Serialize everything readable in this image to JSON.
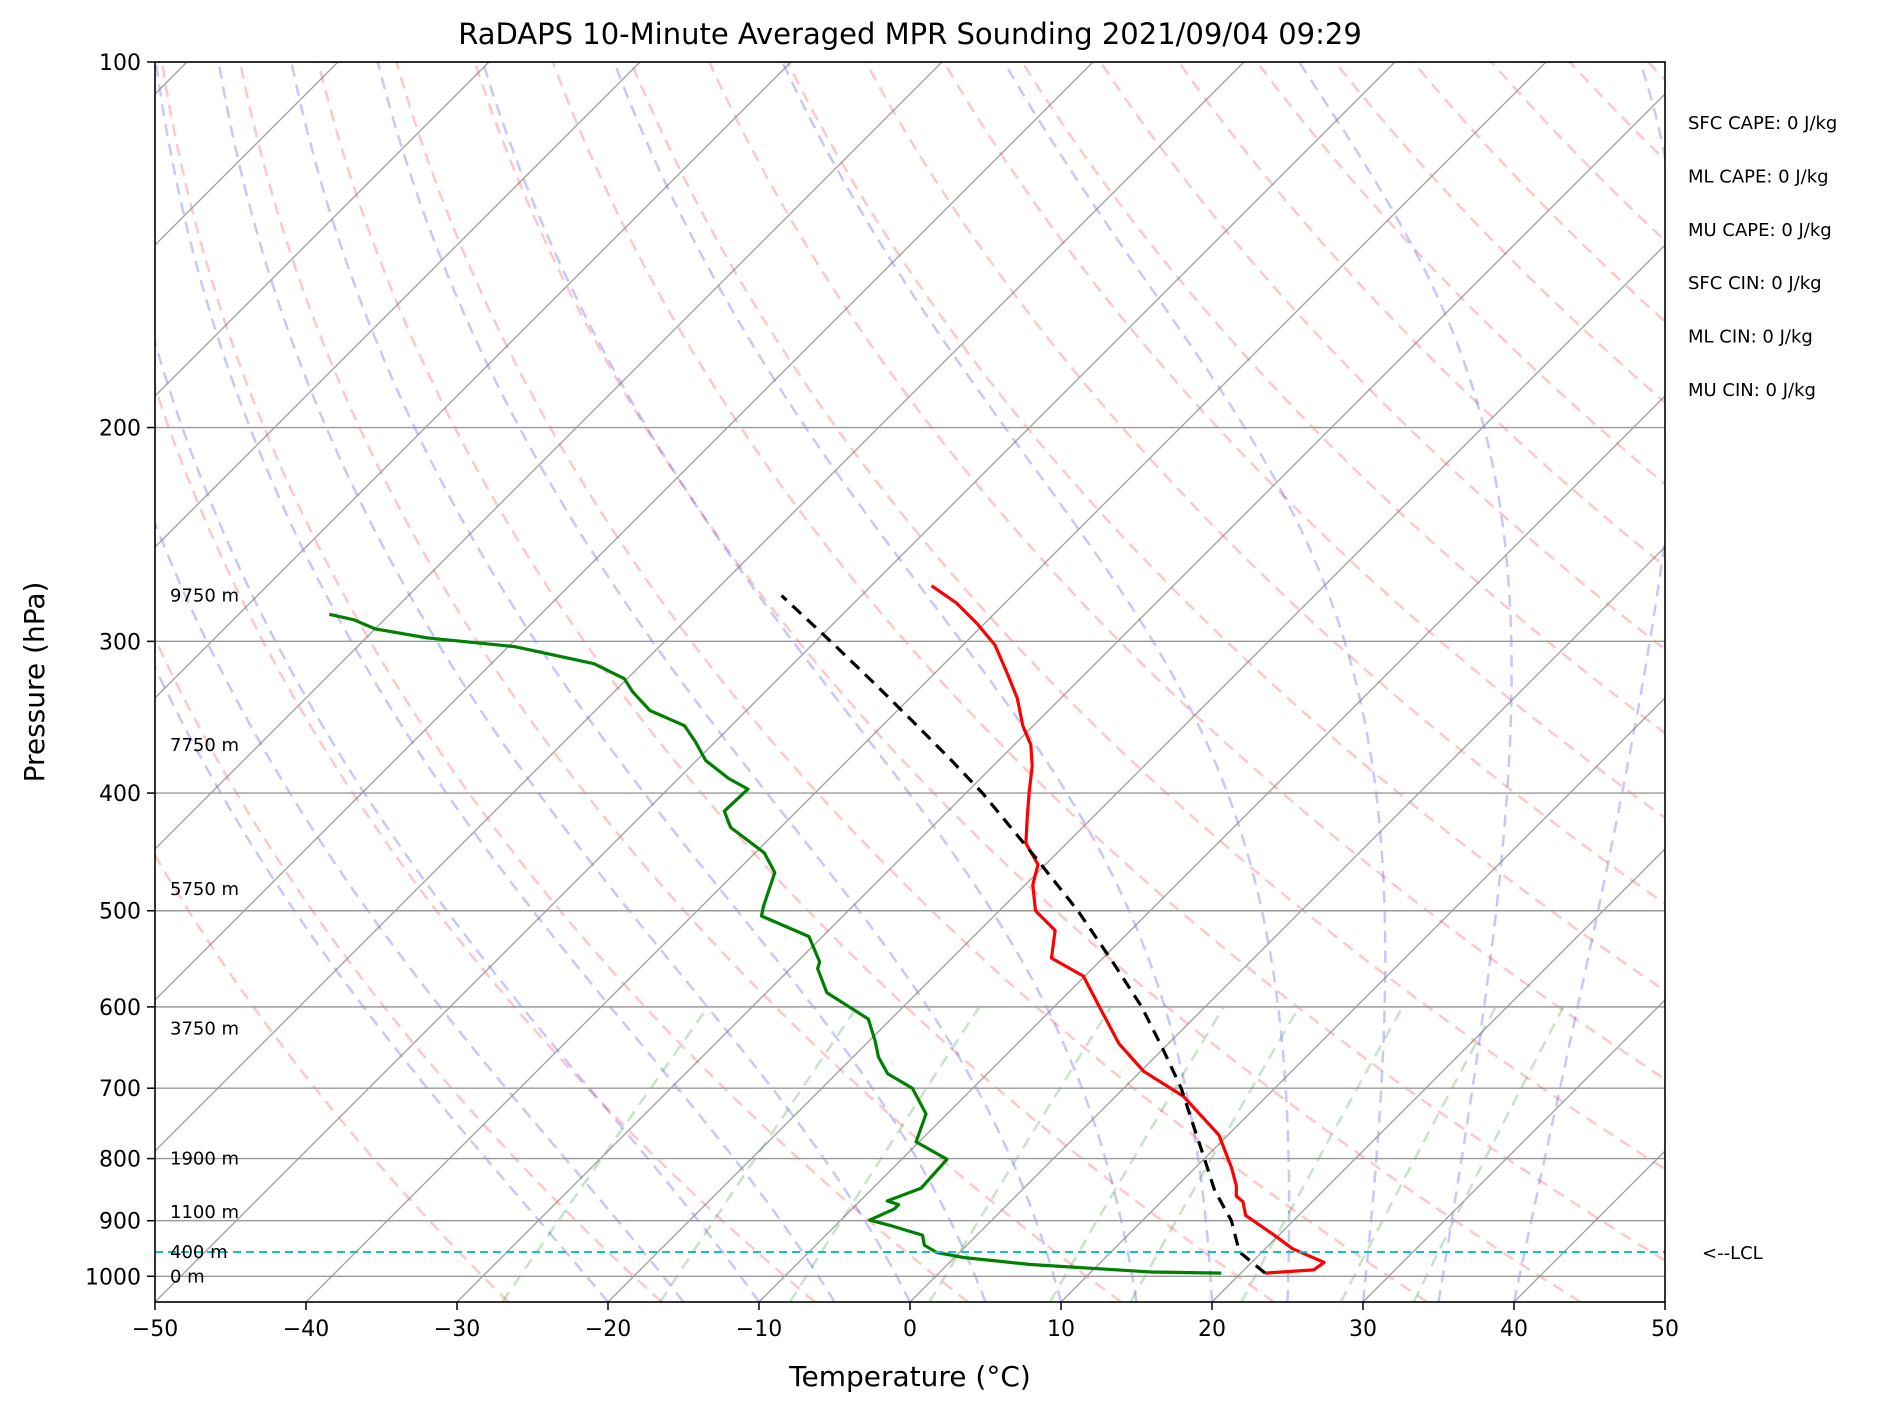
{
  "chart_data": {
    "type": "line",
    "title": "RaDAPS 10-Minute Averaged MPR Sounding 2021/09/04 09:29",
    "xlabel": "Temperature (°C)",
    "ylabel": "Pressure (hPa)",
    "xlim": [
      -50,
      50
    ],
    "ylim": [
      1050,
      100
    ],
    "y_scale": "log",
    "skew": "skew-T",
    "grid": true,
    "x_ticks": [
      -50,
      -40,
      -30,
      -20,
      -10,
      0,
      10,
      20,
      30,
      40,
      50
    ],
    "x_tick_labels": [
      "−50",
      "−40",
      "−30",
      "−20",
      "−10",
      "0",
      "10",
      "20",
      "30",
      "40",
      "50"
    ],
    "y_ticks": [
      100,
      200,
      300,
      400,
      500,
      600,
      700,
      800,
      900,
      1000
    ],
    "y_tick_labels": [
      "100",
      "200",
      "300",
      "400",
      "500",
      "600",
      "700",
      "800",
      "900",
      "1000"
    ],
    "height_labels": [
      {
        "pressure": 275,
        "text": "9750 m"
      },
      {
        "pressure": 365,
        "text": "7750 m"
      },
      {
        "pressure": 480,
        "text": "5750 m"
      },
      {
        "pressure": 625,
        "text": "3750 m"
      },
      {
        "pressure": 800,
        "text": "1900 m"
      },
      {
        "pressure": 885,
        "text": "1100 m"
      },
      {
        "pressure": 955,
        "text": "400 m"
      },
      {
        "pressure": 1000,
        "text": "0 m"
      }
    ],
    "lcl": {
      "pressure": 955,
      "label": "<--LCL"
    },
    "indices": [
      "SFC CAPE: 0 J/kg",
      "ML CAPE: 0 J/kg",
      "MU CAPE: 0 J/kg",
      "SFC CIN: 0 J/kg",
      "ML CIN: 0 J/kg",
      "MU CIN: 0 J/kg"
    ],
    "series": [
      {
        "id": "temperature",
        "color": "#ff0000",
        "style": "solid",
        "points": [
          [
            21.6,
            994
          ],
          [
            24.6,
            988
          ],
          [
            24.8,
            974
          ],
          [
            21.8,
            949
          ],
          [
            19.7,
            925
          ],
          [
            16.5,
            891
          ],
          [
            15.4,
            868
          ],
          [
            14.6,
            859
          ],
          [
            13.9,
            842
          ],
          [
            12.4,
            814
          ],
          [
            9.4,
            765
          ],
          [
            4.5,
            711
          ],
          [
            0.2,
            678
          ],
          [
            -3.3,
            643
          ],
          [
            -7.0,
            600
          ],
          [
            -10.1,
            566
          ],
          [
            -13.4,
            547
          ],
          [
            -15.0,
            519
          ],
          [
            -17.6,
            500
          ],
          [
            -19.5,
            476
          ],
          [
            -20.5,
            458
          ],
          [
            -22.7,
            440
          ],
          [
            -24.4,
            418
          ],
          [
            -25.9,
            399
          ],
          [
            -27.4,
            380
          ],
          [
            -28.9,
            365
          ],
          [
            -30.7,
            352
          ],
          [
            -32.9,
            334
          ],
          [
            -35.0,
            320
          ],
          [
            -37.9,
            302
          ],
          [
            -40.5,
            290
          ],
          [
            -43.2,
            279
          ],
          [
            -46.0,
            270
          ]
        ]
      },
      {
        "id": "dewpoint",
        "color": "#008000",
        "style": "solid",
        "points": [
          [
            18.7,
            994
          ],
          [
            14.0,
            992
          ],
          [
            5.5,
            978
          ],
          [
            0.6,
            965
          ],
          [
            -1.5,
            956
          ],
          [
            -2.8,
            943
          ],
          [
            -3.6,
            925
          ],
          [
            -6.4,
            908
          ],
          [
            -8.1,
            899
          ],
          [
            -7.2,
            880
          ],
          [
            -7.2,
            873
          ],
          [
            -8.2,
            867
          ],
          [
            -6.8,
            846
          ],
          [
            -7.0,
            801
          ],
          [
            -10.2,
            775
          ],
          [
            -11.4,
            735
          ],
          [
            -14.0,
            700
          ],
          [
            -16.6,
            681
          ],
          [
            -18.3,
            660
          ],
          [
            -19.6,
            640
          ],
          [
            -21.5,
            614
          ],
          [
            -26.0,
            584
          ],
          [
            -28.2,
            558
          ],
          [
            -28.5,
            551
          ],
          [
            -30.9,
            525
          ],
          [
            -35.4,
            505
          ],
          [
            -35.9,
            496
          ],
          [
            -37.4,
            465
          ],
          [
            -39.4,
            448
          ],
          [
            -43.3,
            427
          ],
          [
            -44.8,
            414
          ],
          [
            -44.7,
            397
          ],
          [
            -46.7,
            389
          ],
          [
            -49.4,
            376
          ],
          [
            -51.3,
            363
          ],
          [
            -53.1,
            352
          ],
          [
            -56.4,
            342
          ],
          [
            -58.8,
            330
          ],
          [
            -60.2,
            322
          ],
          [
            -63.2,
            313
          ],
          [
            -69.6,
            303
          ],
          [
            -76.0,
            298
          ],
          [
            -80.0,
            293
          ],
          [
            -82.0,
            288
          ],
          [
            -84.0,
            285
          ]
        ]
      },
      {
        "id": "parcel",
        "color": "#000000",
        "style": "dashed",
        "points": [
          [
            21.6,
            994
          ],
          [
            18.5,
            955
          ],
          [
            15.9,
            900
          ],
          [
            12.8,
            850
          ],
          [
            10.0,
            800
          ],
          [
            7.0,
            750
          ],
          [
            3.8,
            700
          ],
          [
            0.0,
            650
          ],
          [
            -4.2,
            600
          ],
          [
            -9.2,
            550
          ],
          [
            -14.8,
            500
          ],
          [
            -21.4,
            450
          ],
          [
            -28.9,
            400
          ],
          [
            -33.3,
            375
          ],
          [
            -38.1,
            350
          ],
          [
            -43.3,
            325
          ],
          [
            -49.0,
            300
          ],
          [
            -55.3,
            275
          ]
        ]
      }
    ]
  }
}
